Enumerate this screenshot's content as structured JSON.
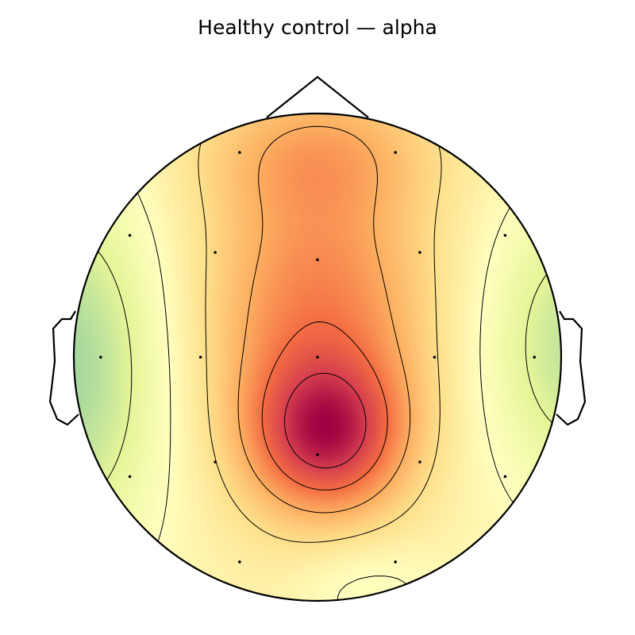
{
  "title": "Healthy control — alpha",
  "chart_data": {
    "type": "heatmap",
    "title": "Healthy control — alpha",
    "colormap": "Spectral_r",
    "colormap_stops": [
      "#a6d89e",
      "#e6f598",
      "#ffffbf",
      "#fee08b",
      "#fdae61",
      "#f46d43",
      "#d53e4f",
      "#9e0142"
    ],
    "xlim": [
      -1,
      1
    ],
    "ylim": [
      -1,
      1
    ],
    "sensors": [
      {
        "x": -0.32,
        "y": 0.84
      },
      {
        "x": 0.32,
        "y": 0.84
      },
      {
        "x": -0.77,
        "y": 0.5
      },
      {
        "x": -0.42,
        "y": 0.43
      },
      {
        "x": 0.0,
        "y": 0.4
      },
      {
        "x": 0.42,
        "y": 0.43
      },
      {
        "x": 0.77,
        "y": 0.5
      },
      {
        "x": -0.89,
        "y": 0.0
      },
      {
        "x": -0.48,
        "y": 0.0
      },
      {
        "x": 0.0,
        "y": 0.0
      },
      {
        "x": 0.48,
        "y": 0.0
      },
      {
        "x": 0.89,
        "y": 0.0
      },
      {
        "x": -0.77,
        "y": -0.49
      },
      {
        "x": -0.42,
        "y": -0.43
      },
      {
        "x": 0.0,
        "y": -0.4
      },
      {
        "x": 0.42,
        "y": -0.43
      },
      {
        "x": 0.77,
        "y": -0.49
      },
      {
        "x": -0.32,
        "y": -0.84
      },
      {
        "x": 0.32,
        "y": -0.84
      }
    ],
    "contour_count": 6
  }
}
